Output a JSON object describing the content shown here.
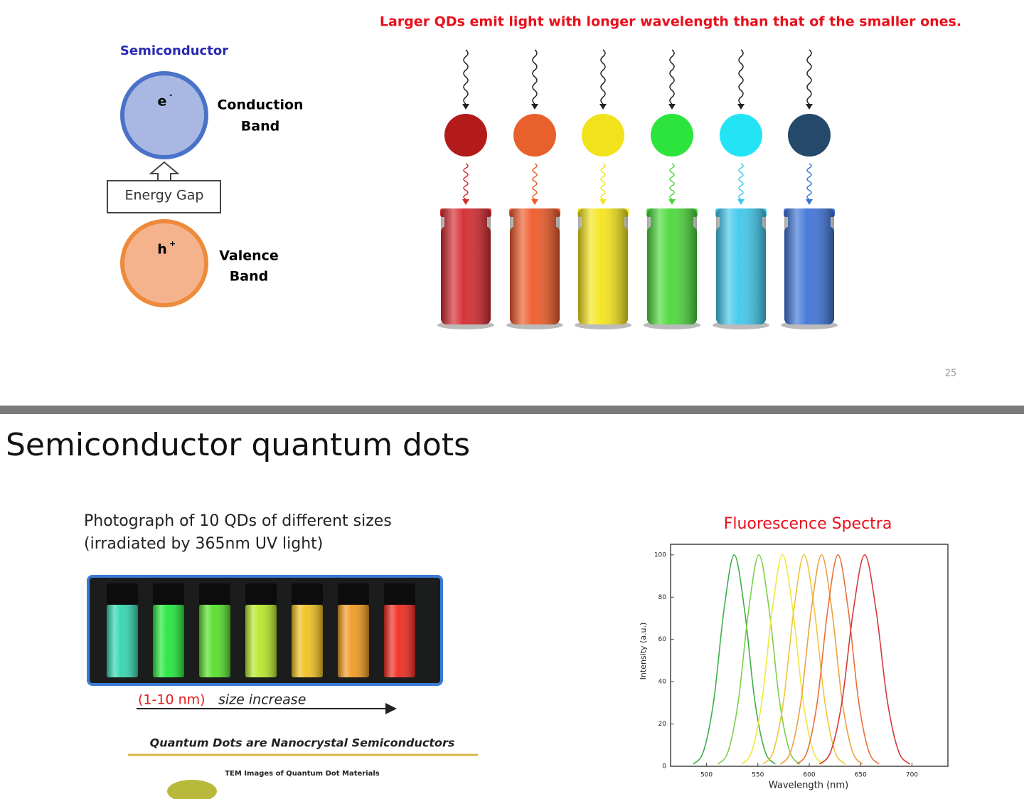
{
  "slide_top": {
    "title": "Larger QDs emit light with longer wavelength than that of the smaller ones.",
    "semiconductor": "Semiconductor",
    "electron": "e",
    "electron_sign": "-",
    "conduction": [
      "Conduction",
      "Band"
    ],
    "energy_gap": "Energy Gap",
    "hole": "h",
    "hole_sign": "+",
    "valence": [
      "Valence",
      "Band"
    ],
    "page_number": "25"
  },
  "slide_bottom": {
    "title": "Semiconductor quantum dots",
    "photo_caption": [
      "Photograph of 10 QDs of different sizes",
      "(irradiated by 365nm UV light)"
    ],
    "size_range": "(1-10 nm)",
    "size_label": "size increase",
    "subheading": "Quantum Dots are Nanocrystal Semiconductors",
    "tem_caption": "TEM Images of Quantum Dot Materials"
  },
  "chart_data": {
    "type": "line",
    "title": "Fluorescence Spectra",
    "xlabel": "Wavelength (nm)",
    "ylabel": "Intensity (a.u.)",
    "xlim": [
      465,
      735
    ],
    "ylim": [
      0,
      105
    ],
    "xticks": [
      500,
      550,
      600,
      650,
      700
    ],
    "yticks": [
      0,
      20,
      40,
      60,
      80,
      100
    ],
    "series": [
      {
        "color": "#3fae4a",
        "x": [
          487,
          497,
          507,
          517,
          527,
          537,
          547,
          557,
          567
        ],
        "values": [
          1,
          7,
          31,
          74,
          100,
          74,
          31,
          7,
          1
        ]
      },
      {
        "color": "#7ccf4a",
        "x": [
          511,
          521,
          531,
          541,
          551,
          561,
          571,
          581,
          591
        ],
        "values": [
          1,
          7,
          31,
          74,
          100,
          74,
          31,
          7,
          1
        ]
      },
      {
        "color": "#f0e83a",
        "x": [
          534,
          544,
          554,
          564,
          574,
          584,
          594,
          604,
          614
        ],
        "values": [
          1,
          7,
          31,
          74,
          100,
          74,
          31,
          7,
          1
        ]
      },
      {
        "color": "#efc43a",
        "x": [
          555,
          565,
          575,
          585,
          595,
          605,
          615,
          625,
          635
        ],
        "values": [
          1,
          7,
          31,
          74,
          100,
          74,
          31,
          7,
          1
        ]
      },
      {
        "color": "#eea040",
        "x": [
          572,
          582,
          592,
          602,
          612,
          622,
          632,
          642,
          652
        ],
        "values": [
          1,
          7,
          31,
          74,
          100,
          74,
          31,
          7,
          1
        ]
      },
      {
        "color": "#e8703a",
        "x": [
          588,
          598,
          608,
          618,
          628,
          638,
          648,
          658,
          668
        ],
        "values": [
          1,
          7,
          31,
          74,
          100,
          74,
          31,
          7,
          1
        ]
      },
      {
        "color": "#d6383a",
        "x": [
          610,
          621,
          632,
          643,
          654,
          665,
          676,
          687,
          698
        ],
        "values": [
          1,
          7,
          31,
          74,
          100,
          74,
          31,
          7,
          1
        ]
      }
    ]
  }
}
